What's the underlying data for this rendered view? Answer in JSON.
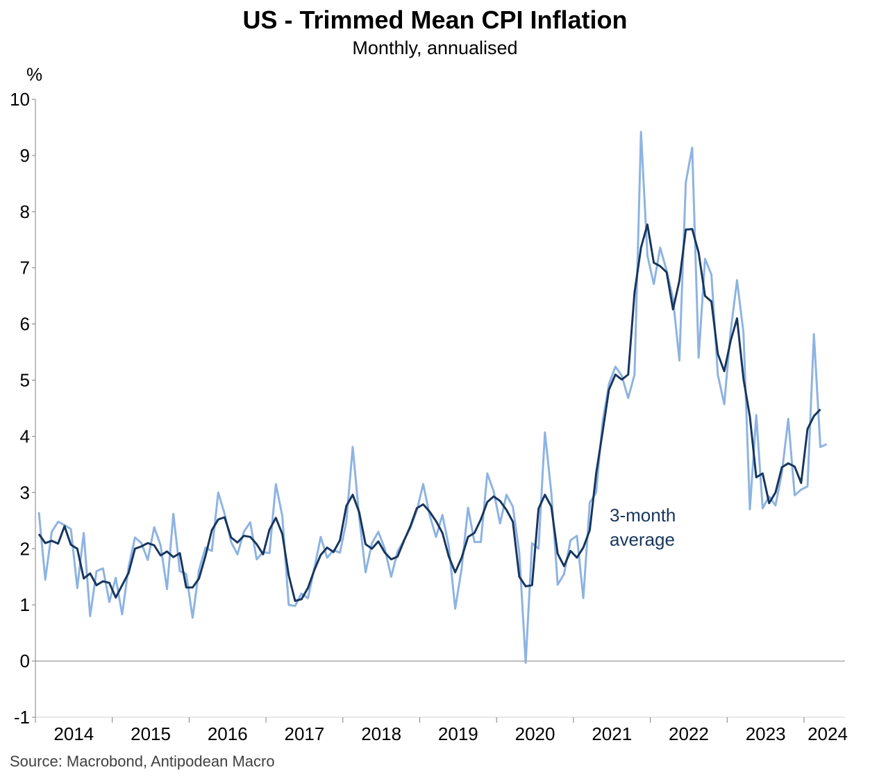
{
  "title": "US - Trimmed Mean CPI Inflation",
  "subtitle": "Monthly, annualised",
  "source": "Source: Macrobond, Antipodean Macro",
  "colors": {
    "monthly": "#8db3e2",
    "average": "#17365d",
    "axis": "#7f7f7f"
  },
  "chart_data": {
    "type": "line",
    "title": "US - Trimmed Mean CPI Inflation",
    "subtitle": "Monthly, annualised",
    "y_unit": "%",
    "ylim": [
      -1,
      10
    ],
    "y_ticks": [
      -1,
      0,
      1,
      2,
      3,
      4,
      5,
      6,
      7,
      8,
      9,
      10
    ],
    "x_tick_labels": [
      "2014",
      "2015",
      "2016",
      "2017",
      "2018",
      "2019",
      "2020",
      "2021",
      "2022",
      "2023",
      "2024"
    ],
    "x_start": "2014-01",
    "grid": false,
    "annotation": {
      "text": [
        "3-month",
        "average"
      ]
    },
    "series": [
      {
        "values": [
          2.65,
          1.45,
          2.3,
          2.48,
          2.42,
          2.35,
          1.3,
          2.28,
          0.8,
          1.6,
          1.65,
          1.05,
          1.48,
          0.83,
          1.67,
          2.2,
          2.1,
          1.8,
          2.38,
          2.06,
          1.28,
          2.62,
          1.6,
          1.55,
          0.77,
          1.62,
          2.02,
          1.96,
          3.0,
          2.62,
          2.12,
          1.9,
          2.3,
          2.47,
          1.81,
          1.94,
          1.92,
          3.15,
          2.58,
          1.0,
          0.98,
          1.2,
          1.12,
          1.65,
          2.21,
          1.84,
          1.97,
          1.93,
          2.48,
          3.81,
          2.57,
          1.58,
          2.1,
          2.3,
          2.0,
          1.5,
          1.95,
          2.15,
          2.37,
          2.68,
          3.15,
          2.6,
          2.21,
          2.6,
          2.04,
          0.93,
          1.65,
          2.73,
          2.12,
          2.12,
          3.34,
          3.02,
          2.45,
          2.96,
          2.75,
          1.93,
          -0.03,
          2.1,
          2.0,
          4.07,
          3.0,
          1.36,
          1.55,
          2.15,
          2.23,
          1.12,
          2.82,
          3.0,
          4.25,
          4.93,
          5.24,
          5.08,
          4.68,
          5.1,
          9.42,
          7.22,
          6.71,
          7.36,
          6.95,
          6.45,
          5.35,
          8.52,
          9.14,
          5.4,
          7.16,
          6.88,
          5.1,
          4.57,
          5.87,
          6.78,
          5.84,
          2.7,
          4.38,
          2.72,
          2.93,
          2.77,
          3.35,
          4.31,
          2.95,
          3.05,
          3.11,
          5.82,
          3.81,
          3.86
        ]
      },
      {
        "name": "3-month average",
        "values": [
          2.26,
          2.1,
          2.14,
          2.09,
          2.4,
          2.07,
          2.0,
          1.47,
          1.56,
          1.35,
          1.42,
          1.39,
          1.13,
          1.35,
          1.57,
          2.0,
          2.04,
          2.1,
          2.06,
          1.88,
          1.95,
          1.85,
          1.92,
          1.31,
          1.31,
          1.47,
          1.87,
          2.33,
          2.52,
          2.56,
          2.2,
          2.11,
          2.23,
          2.21,
          2.08,
          1.9,
          2.34,
          2.55,
          2.26,
          1.53,
          1.07,
          1.1,
          1.3,
          1.62,
          1.89,
          2.02,
          1.94,
          2.15,
          2.76,
          2.96,
          2.65,
          2.08,
          2.0,
          2.13,
          1.93,
          1.81,
          1.86,
          2.14,
          2.4,
          2.72,
          2.79,
          2.66,
          2.49,
          2.28,
          1.86,
          1.58,
          1.84,
          2.21,
          2.28,
          2.52,
          2.83,
          2.93,
          2.85,
          2.69,
          2.48,
          1.5,
          1.33,
          1.35,
          2.71,
          2.96,
          2.75,
          1.91,
          1.69,
          1.96,
          1.84,
          2.02,
          2.33,
          3.34,
          4.07,
          4.83,
          5.1,
          5.01,
          5.1,
          6.56,
          7.36,
          7.77,
          7.09,
          7.03,
          6.92,
          6.26,
          6.77,
          7.68,
          7.69,
          7.27,
          6.5,
          6.4,
          5.47,
          5.16,
          5.7,
          6.1,
          5.02,
          4.35,
          3.27,
          3.34,
          2.81,
          3.0,
          3.45,
          3.52,
          3.46,
          3.17,
          4.13,
          4.36,
          4.48
        ]
      }
    ]
  }
}
